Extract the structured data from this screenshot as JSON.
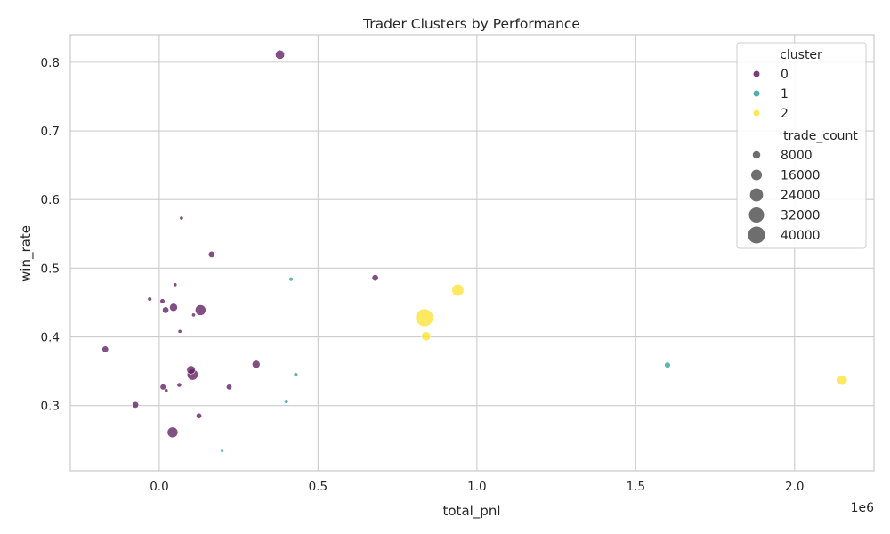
{
  "chart_data": {
    "type": "scatter",
    "title": "Trader Clusters by Performance",
    "xlabel": "total_pnl",
    "ylabel": "win_rate",
    "x_offset_label": "1e6",
    "xlim": [
      -0.28,
      2.25
    ],
    "ylim": [
      0.205,
      0.84
    ],
    "x_ticks": [
      0.0,
      0.5,
      1.0,
      1.5,
      2.0
    ],
    "x_tick_labels": [
      "0.0",
      "0.5",
      "1.0",
      "1.5",
      "2.0"
    ],
    "y_ticks": [
      0.3,
      0.4,
      0.5,
      0.6,
      0.7,
      0.8
    ],
    "y_tick_labels": [
      "0.3",
      "0.4",
      "0.5",
      "0.6",
      "0.7",
      "0.8"
    ],
    "grid": true,
    "legend": {
      "placement": "top-right",
      "hue_title": "cluster",
      "hue_entries": [
        {
          "label": "0",
          "color": "#5e1e60"
        },
        {
          "label": "1",
          "color": "#33a09f"
        },
        {
          "label": "2",
          "color": "#fde335"
        }
      ],
      "size_title": "trade_count",
      "size_entries": [
        {
          "label": "8000",
          "value": 8000
        },
        {
          "label": "16000",
          "value": 16000
        },
        {
          "label": "24000",
          "value": 24000
        },
        {
          "label": "32000",
          "value": 32000
        },
        {
          "label": "40000",
          "value": 40000
        }
      ]
    },
    "series": [
      {
        "name": "0",
        "color": "#5e1e60",
        "points": [
          {
            "x": 0.38,
            "y": 0.811,
            "size": 12000
          },
          {
            "x": 0.07,
            "y": 0.573,
            "size": 2000
          },
          {
            "x": 0.165,
            "y": 0.52,
            "size": 6000
          },
          {
            "x": 0.05,
            "y": 0.476,
            "size": 2000
          },
          {
            "x": 0.68,
            "y": 0.486,
            "size": 6000
          },
          {
            "x": -0.03,
            "y": 0.455,
            "size": 2500
          },
          {
            "x": 0.01,
            "y": 0.452,
            "size": 3500
          },
          {
            "x": 0.045,
            "y": 0.443,
            "size": 9000
          },
          {
            "x": 0.02,
            "y": 0.439,
            "size": 6000
          },
          {
            "x": 0.13,
            "y": 0.439,
            "size": 16000
          },
          {
            "x": 0.108,
            "y": 0.432,
            "size": 2000
          },
          {
            "x": 0.065,
            "y": 0.408,
            "size": 2000
          },
          {
            "x": -0.17,
            "y": 0.382,
            "size": 6000
          },
          {
            "x": 0.305,
            "y": 0.36,
            "size": 9000
          },
          {
            "x": 0.1,
            "y": 0.352,
            "size": 10000
          },
          {
            "x": 0.105,
            "y": 0.345,
            "size": 17000
          },
          {
            "x": 0.012,
            "y": 0.327,
            "size": 5000
          },
          {
            "x": 0.063,
            "y": 0.33,
            "size": 3000
          },
          {
            "x": 0.022,
            "y": 0.322,
            "size": 2000
          },
          {
            "x": 0.22,
            "y": 0.327,
            "size": 4500
          },
          {
            "x": -0.075,
            "y": 0.301,
            "size": 6000
          },
          {
            "x": 0.125,
            "y": 0.285,
            "size": 4500
          },
          {
            "x": 0.042,
            "y": 0.261,
            "size": 16000
          }
        ]
      },
      {
        "name": "1",
        "color": "#33a09f",
        "points": [
          {
            "x": 0.415,
            "y": 0.484,
            "size": 2500
          },
          {
            "x": 0.43,
            "y": 0.345,
            "size": 2500
          },
          {
            "x": 0.4,
            "y": 0.306,
            "size": 2500
          },
          {
            "x": 0.198,
            "y": 0.234,
            "size": 1500
          },
          {
            "x": 1.6,
            "y": 0.359,
            "size": 5000
          }
        ]
      },
      {
        "name": "2",
        "color": "#fde335",
        "points": [
          {
            "x": 0.94,
            "y": 0.468,
            "size": 20000
          },
          {
            "x": 0.835,
            "y": 0.428,
            "size": 44000
          },
          {
            "x": 0.84,
            "y": 0.401,
            "size": 12000
          },
          {
            "x": 2.15,
            "y": 0.337,
            "size": 14000
          }
        ]
      }
    ]
  }
}
